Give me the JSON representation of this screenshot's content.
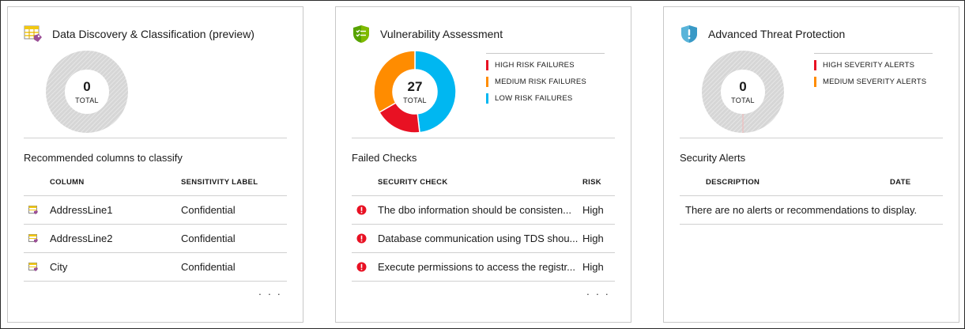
{
  "colors": {
    "high": "#e81123",
    "medium": "#ff8c00",
    "low": "#00b7f1",
    "empty_ring": "#d9d9d9",
    "card_border": "#c8c8c8",
    "error_icon": "#e81123"
  },
  "discovery": {
    "icon": "data-classification-icon",
    "title": "Data Discovery & Classification (preview)",
    "donut": {
      "total": "0",
      "caption": "TOTAL"
    },
    "section_title": "Recommended columns to classify",
    "columns": {
      "column": "COLUMN",
      "label": "SENSITIVITY LABEL"
    },
    "rows": [
      {
        "icon": "table-column-icon",
        "column": "AddressLine1",
        "label": "Confidential"
      },
      {
        "icon": "table-column-icon",
        "column": "AddressLine2",
        "label": "Confidential"
      },
      {
        "icon": "table-column-icon",
        "column": "City",
        "label": "Confidential"
      }
    ],
    "more": "· · ·"
  },
  "vulnerability": {
    "icon": "shield-checklist-icon",
    "title": "Vulnerability Assessment",
    "donut": {
      "total": "27",
      "caption": "TOTAL"
    },
    "chart_data": {
      "type": "pie",
      "categories": [
        "HIGH RISK FAILURES",
        "MEDIUM RISK FAILURES",
        "LOW RISK FAILURES"
      ],
      "values": [
        5,
        9,
        13
      ],
      "total": 27
    },
    "legend": [
      {
        "label": "HIGH RISK FAILURES",
        "color": "#e81123"
      },
      {
        "label": "MEDIUM RISK FAILURES",
        "color": "#ff8c00"
      },
      {
        "label": "LOW RISK FAILURES",
        "color": "#00b7f1"
      }
    ],
    "section_title": "Failed Checks",
    "columns": {
      "check": "SECURITY CHECK",
      "risk": "RISK"
    },
    "rows": [
      {
        "icon": "error-icon",
        "check": "The dbo information should be consisten...",
        "risk": "High"
      },
      {
        "icon": "error-icon",
        "check": "Database communication using TDS shou...",
        "risk": "High"
      },
      {
        "icon": "error-icon",
        "check": "Execute permissions to access the registr...",
        "risk": "High"
      }
    ],
    "more": "· · ·"
  },
  "threat": {
    "icon": "shield-alert-icon",
    "title": "Advanced Threat Protection",
    "donut": {
      "total": "0",
      "caption": "TOTAL"
    },
    "legend": [
      {
        "label": "HIGH SEVERITY ALERTS",
        "color": "#e81123"
      },
      {
        "label": "MEDIUM SEVERITY ALERTS",
        "color": "#ff8c00"
      }
    ],
    "section_title": "Security Alerts",
    "columns": {
      "description": "DESCRIPTION",
      "date": "DATE"
    },
    "empty_message": "There are no alerts or recommendations to display."
  }
}
